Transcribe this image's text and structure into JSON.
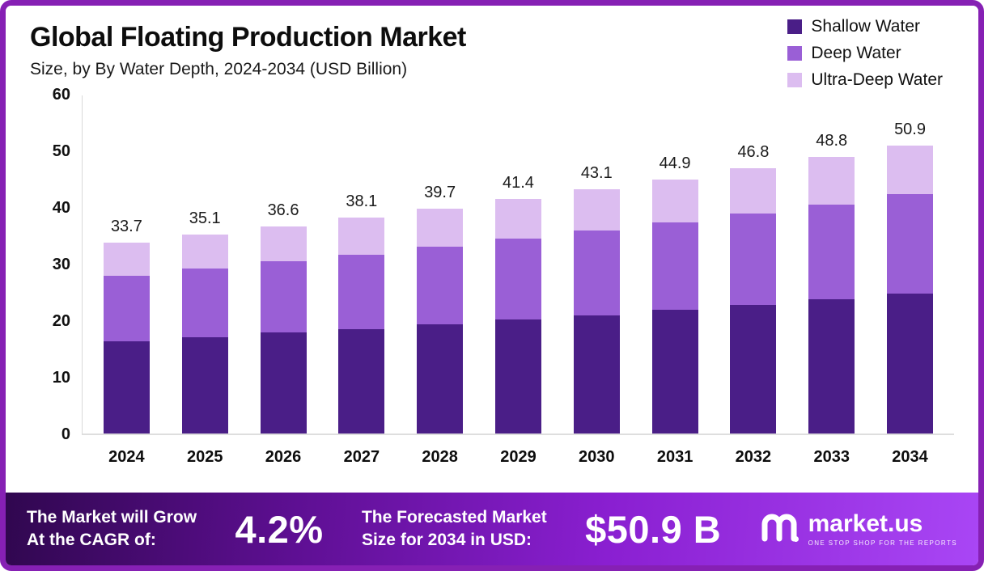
{
  "header": {
    "title": "Global Floating Production Market",
    "subtitle": "Size, by By Water Depth, 2024-2034 (USD Billion)"
  },
  "legend": [
    {
      "label": "Shallow Water",
      "color": "#4a1e87"
    },
    {
      "label": "Deep Water",
      "color": "#9a5fd6"
    },
    {
      "label": "Ultra-Deep Water",
      "color": "#dcbdf0"
    }
  ],
  "chart_data": {
    "type": "bar",
    "stacked": true,
    "title": "Global Floating Production Market",
    "subtitle": "Size, by By Water Depth, 2024-2034 (USD Billion)",
    "unit": "USD Billion",
    "categories": [
      "2024",
      "2025",
      "2026",
      "2027",
      "2028",
      "2029",
      "2030",
      "2031",
      "2032",
      "2033",
      "2034"
    ],
    "series": [
      {
        "name": "Shallow Water",
        "color": "#4a1e87",
        "values": [
          16.3,
          17.0,
          17.8,
          18.5,
          19.3,
          20.1,
          20.9,
          21.8,
          22.7,
          23.7,
          24.7
        ]
      },
      {
        "name": "Deep Water",
        "color": "#9a5fd6",
        "values": [
          11.6,
          12.1,
          12.6,
          13.1,
          13.7,
          14.3,
          14.9,
          15.5,
          16.1,
          16.8,
          17.6
        ]
      },
      {
        "name": "Ultra-Deep Water",
        "color": "#dcbdf0",
        "values": [
          5.8,
          6.0,
          6.2,
          6.5,
          6.7,
          7.0,
          7.3,
          7.6,
          8.0,
          8.3,
          8.6
        ]
      }
    ],
    "totals": [
      33.7,
      35.1,
      36.6,
      38.1,
      39.7,
      41.4,
      43.1,
      44.9,
      46.8,
      48.8,
      50.9
    ],
    "ylim": [
      0,
      60
    ],
    "yticks": [
      0,
      10,
      20,
      30,
      40,
      50,
      60
    ],
    "grid": false,
    "legend_position": "top-right"
  },
  "footer": {
    "growth_label_line1": "The Market will Grow",
    "growth_label_line2": "At the CAGR of:",
    "cagr_value": "4.2%",
    "forecast_label_line1": "The Forecasted Market",
    "forecast_label_line2": "Size for 2034 in USD:",
    "forecast_value": "$50.9 B",
    "brand_name": "market.us",
    "brand_tagline": "ONE STOP SHOP FOR THE REPORTS"
  }
}
